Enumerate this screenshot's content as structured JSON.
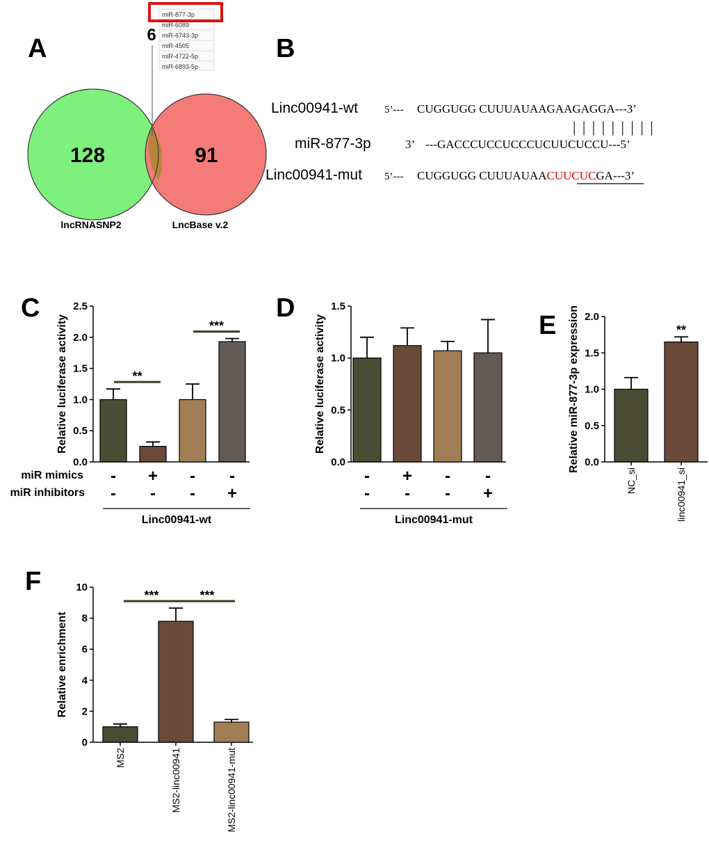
{
  "panels": {
    "A": "A",
    "B": "B",
    "C": "C",
    "D": "D",
    "E": "E",
    "F": "F"
  },
  "colors": {
    "olive": "#4a4d33",
    "brown": "#6b4a3a",
    "tan": "#a07d55",
    "gray": "#625a55",
    "venn_green": "#7df07d",
    "venn_red": "#f47b78",
    "venn_overlap": "#b8853e",
    "highlight": "#dd0000"
  },
  "venn": {
    "left_count": "128",
    "right_count": "91",
    "overlap_count": "6",
    "left_label": "lncRNASNP2",
    "right_label": "LncBase v.2",
    "mirnas": [
      "miR-877-3p",
      "miR-6089",
      "miR-6743-3p",
      "miR-4505",
      "miR-4722-5p",
      "miR-6893-5p"
    ]
  },
  "sequences": {
    "wt": {
      "name": "Linc00941-wt",
      "five": "5’---",
      "seq": "CUGGUGG CUUUAUAAGAAGAGGA---3’"
    },
    "mir": {
      "name": "miR-877-3p",
      "three": "3’",
      "seq": "---GACCCUCCUCCCUCUUCUCCU---5’"
    },
    "mut": {
      "name": "Linc00941-mut",
      "five": "5’---",
      "seq_before": "CUGGUGG CUUUAUAA",
      "seq_mut": "CUUCUC",
      "seq_after": "GA---3’"
    },
    "pairing": "| | | | | | | | |"
  },
  "chart_data": [
    {
      "id": "C",
      "type": "bar",
      "ylabel": "Relative luciferase activity",
      "ylim": [
        0,
        2.5
      ],
      "yticks": [
        "0.0",
        "0.5",
        "1.0",
        "1.5",
        "2.0",
        "2.5"
      ],
      "values": [
        1.0,
        0.25,
        1.0,
        1.93
      ],
      "errors": [
        0.17,
        0.07,
        0.25,
        0.05
      ],
      "row_labels": [
        "miR mimics",
        "miR inhibitors"
      ],
      "mimics": [
        "-",
        "+",
        "-",
        "-"
      ],
      "inhibitors": [
        "-",
        "-",
        "-",
        "+"
      ],
      "group_label": "Linc00941-wt",
      "significance": [
        {
          "from": 0,
          "to": 1,
          "label": "**"
        },
        {
          "from": 2,
          "to": 3,
          "label": "***"
        }
      ]
    },
    {
      "id": "D",
      "type": "bar",
      "ylabel": "Relative luciferase activity",
      "ylim": [
        0,
        1.5
      ],
      "yticks": [
        "0.0",
        "0.5",
        "1.0",
        "1.5"
      ],
      "values": [
        1.0,
        1.12,
        1.07,
        1.05
      ],
      "errors": [
        0.2,
        0.17,
        0.09,
        0.32
      ],
      "mimics": [
        "-",
        "+",
        "-",
        "-"
      ],
      "inhibitors": [
        "-",
        "-",
        "-",
        "+"
      ],
      "group_label": "Linc00941-mut"
    },
    {
      "id": "E",
      "type": "bar",
      "ylabel": "Relative miR-877-3p expression",
      "ylim": [
        0,
        2.0
      ],
      "yticks": [
        "0.0",
        "0.5",
        "1.0",
        "1.5",
        "2.0"
      ],
      "categories": [
        "NC_si",
        "linc00941_si"
      ],
      "values": [
        1.0,
        1.65
      ],
      "errors": [
        0.16,
        0.07
      ],
      "annotation": "**"
    },
    {
      "id": "F",
      "type": "bar",
      "ylabel": "Relative enrichment",
      "ylim": [
        0,
        10
      ],
      "yticks": [
        "0",
        "2",
        "4",
        "6",
        "8",
        "10"
      ],
      "categories": [
        "MS2",
        "MS2-linc00941",
        "MS2-linc00941-mut"
      ],
      "values": [
        1.0,
        7.8,
        1.3
      ],
      "errors": [
        0.18,
        0.85,
        0.17
      ],
      "significance": [
        {
          "from": 0,
          "to": 1,
          "label": "***"
        },
        {
          "from": 1,
          "to": 2,
          "label": "***"
        }
      ]
    }
  ]
}
